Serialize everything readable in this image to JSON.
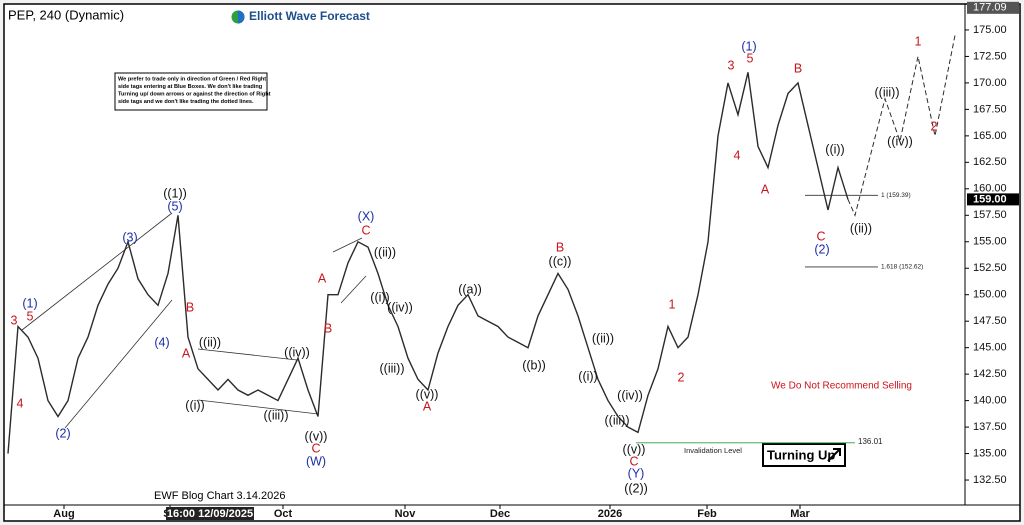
{
  "chart_data": {
    "type": "line",
    "title": "PEP, 240 (Dynamic)",
    "brand": "Elliott Wave Forecast",
    "footer": "EWF Blog Chart 3.14.2026",
    "note_lines": [
      "We prefer to trade only in direction of Green / Red Right",
      "side tags entering at Blue Boxes. We don't like trading",
      "Turning up/ down arrows or against the direction of Right",
      "side tags and we don't like trading the dotted lines."
    ],
    "warning": "We Do Not Recommend Selling",
    "signal": "Turning Up",
    "invalidation_text": "Invalidation Level",
    "xlim": [
      0,
      95.7
    ],
    "xticks": [
      {
        "value": 5.6,
        "label": "Aug"
      },
      {
        "value": 16.2,
        "label": "Se"
      },
      {
        "value": 20.5,
        "label": "16:00 12/09/2025"
      },
      {
        "value": 27.5,
        "label": "Oct"
      },
      {
        "value": 39.7,
        "label": "Nov"
      },
      {
        "value": 49.2,
        "label": "Dec"
      },
      {
        "value": 60.2,
        "label": "2026"
      },
      {
        "value": 69.9,
        "label": "Feb"
      },
      {
        "value": 79.2,
        "label": "Mar"
      }
    ],
    "ylim": [
      129.5,
      177.3
    ],
    "yticks": [
      {
        "value": 132.5,
        "label": "132.50"
      },
      {
        "value": 135,
        "label": "135.00"
      },
      {
        "value": 137.5,
        "label": "137.50"
      },
      {
        "value": 140,
        "label": "140.00"
      },
      {
        "value": 142.5,
        "label": "142.50"
      },
      {
        "value": 145,
        "label": "145.00"
      },
      {
        "value": 147.5,
        "label": "147.50"
      },
      {
        "value": 150,
        "label": "150.00"
      },
      {
        "value": 152.5,
        "label": "152.50"
      },
      {
        "value": 155,
        "label": "155.00"
      },
      {
        "value": 157.5,
        "label": "157.50"
      },
      {
        "value": 160,
        "label": "160.00"
      },
      {
        "value": 162.5,
        "label": "162.50"
      },
      {
        "value": 165,
        "label": "165.00"
      },
      {
        "value": 167.5,
        "label": "167.50"
      },
      {
        "value": 170,
        "label": "170.00"
      },
      {
        "value": 172.5,
        "label": "172.50"
      },
      {
        "value": 175,
        "label": "175.00"
      }
    ],
    "high_marker": 177.09,
    "last_price": {
      "value": 159,
      "label": "159.00"
    },
    "levels": [
      {
        "value": 159.39,
        "label": "1 (159.39)",
        "color": "#333333"
      },
      {
        "value": 152.62,
        "label": "1.618 (152.62)",
        "color": "#333333"
      },
      {
        "value": 136.01,
        "label": "136.01",
        "color": "#2e9e3e"
      }
    ],
    "series": [
      {
        "name": "PEP",
        "color": "#2b2b2b",
        "values": [
          135,
          147,
          146,
          144,
          140,
          138.5,
          140,
          144,
          146,
          149,
          151,
          152.5,
          155,
          151.5,
          150,
          149,
          152,
          157.5,
          146,
          143,
          142,
          141,
          142,
          141,
          140.5,
          141,
          140.5,
          140,
          142,
          144,
          141,
          138.5,
          150,
          150,
          153,
          155,
          154.5,
          152,
          149,
          147,
          144,
          142,
          141,
          144.5,
          147,
          149,
          150,
          148,
          147.5,
          147,
          146,
          145.5,
          145,
          148,
          150,
          152,
          150.5,
          148,
          145,
          142,
          140,
          138.5,
          137.5,
          137,
          140.5,
          143,
          147,
          145,
          146,
          150,
          155,
          165,
          170,
          167,
          171,
          164,
          162,
          166,
          169,
          170,
          166,
          162,
          158,
          162,
          159
        ]
      },
      {
        "name": "Projection",
        "color": "#2b2b2b",
        "x": [
          84,
          84.7,
          87.7,
          89.2,
          91,
          92.7,
          94.7
        ],
        "values": [
          159,
          157.5,
          168.5,
          164.5,
          172.5,
          165,
          174.5
        ]
      }
    ],
    "annotations": [
      {
        "text": "3",
        "color": "#c8161d"
      },
      {
        "text": "5",
        "color": "#c8161d"
      },
      {
        "text": "(1)",
        "color": "#1c2fa8"
      },
      {
        "text": "4",
        "color": "#c8161d"
      },
      {
        "text": "(2)",
        "color": "#1c2fa8"
      },
      {
        "text": "(3)",
        "color": "#1c2fa8"
      },
      {
        "text": "((1))",
        "color": "#111111"
      },
      {
        "text": "(5)",
        "color": "#1c2fa8"
      },
      {
        "text": "B",
        "color": "#c8161d"
      },
      {
        "text": "(4)",
        "color": "#1c2fa8"
      },
      {
        "text": "A",
        "color": "#c8161d"
      },
      {
        "text": "((ii))",
        "color": "#111111"
      },
      {
        "text": "((i))",
        "color": "#111111"
      },
      {
        "text": "((iv))",
        "color": "#111111"
      },
      {
        "text": "((iii))",
        "color": "#111111"
      },
      {
        "text": "((v))",
        "color": "#111111"
      },
      {
        "text": "C",
        "color": "#c8161d"
      },
      {
        "text": "(W)",
        "color": "#1c2fa8"
      },
      {
        "text": "(X)",
        "color": "#1c2fa8"
      },
      {
        "text": "C",
        "color": "#c8161d"
      },
      {
        "text": "((ii))",
        "color": "#111111"
      },
      {
        "text": "A",
        "color": "#c8161d"
      },
      {
        "text": "B",
        "color": "#c8161d"
      },
      {
        "text": "((i))",
        "color": "#111111"
      },
      {
        "text": "((iv))",
        "color": "#111111"
      },
      {
        "text": "((iii))",
        "color": "#111111"
      },
      {
        "text": "((v))",
        "color": "#111111"
      },
      {
        "text": "A",
        "color": "#c8161d"
      },
      {
        "text": "((a))",
        "color": "#111111"
      },
      {
        "text": "B",
        "color": "#c8161d"
      },
      {
        "text": "((c))",
        "color": "#111111"
      },
      {
        "text": "((b))",
        "color": "#111111"
      },
      {
        "text": "((ii))",
        "color": "#111111"
      },
      {
        "text": "((i))",
        "color": "#111111"
      },
      {
        "text": "((iv))",
        "color": "#111111"
      },
      {
        "text": "((iii))",
        "color": "#111111"
      },
      {
        "text": "((v))",
        "color": "#111111"
      },
      {
        "text": "C",
        "color": "#c8161d"
      },
      {
        "text": "(Y)",
        "color": "#1c2fa8"
      },
      {
        "text": "((2))",
        "color": "#111111"
      },
      {
        "text": "1",
        "color": "#c8161d"
      },
      {
        "text": "2",
        "color": "#c8161d"
      },
      {
        "text": "3",
        "color": "#c8161d"
      },
      {
        "text": "(1)",
        "color": "#1c2fa8"
      },
      {
        "text": "5",
        "color": "#c8161d"
      },
      {
        "text": "4",
        "color": "#c8161d"
      },
      {
        "text": "A",
        "color": "#c8161d"
      },
      {
        "text": "B",
        "color": "#c8161d"
      },
      {
        "text": "((i))",
        "color": "#111111"
      },
      {
        "text": "C",
        "color": "#c8161d"
      },
      {
        "text": "(2)",
        "color": "#1c2fa8"
      },
      {
        "text": "((ii))",
        "color": "#111111"
      },
      {
        "text": "((iii))",
        "color": "#111111"
      },
      {
        "text": "((iv))",
        "color": "#111111"
      },
      {
        "text": "1",
        "color": "#c8161d"
      },
      {
        "text": "2",
        "color": "#c8161d"
      }
    ]
  }
}
